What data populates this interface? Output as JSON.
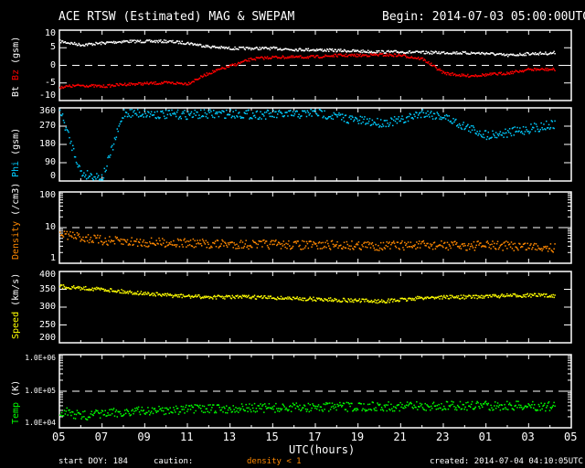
{
  "chart_data": {
    "type": "scatter",
    "title": "ACE RTSW (Estimated) MAG & SWEPAM",
    "begin": "Begin: 2014-07-03 05:00:00UTC",
    "xlabel": "UTC(hours)",
    "x_ticks": [
      "05",
      "07",
      "09",
      "11",
      "13",
      "15",
      "17",
      "19",
      "21",
      "23",
      "01",
      "03",
      "05"
    ],
    "xlim": [
      0,
      24
    ],
    "hours": [
      0,
      1,
      2,
      3,
      4,
      5,
      6,
      7,
      8,
      9,
      10,
      11,
      12,
      13,
      14,
      15,
      16,
      17,
      18,
      19,
      20,
      21,
      22,
      23,
      23.2
    ],
    "panels": [
      {
        "name": "bt-bz",
        "ylabel_parts": [
          {
            "text": "Bt",
            "color": "#ffffff"
          },
          {
            "text": "Bz",
            "color": "#ff0000"
          },
          {
            "text": "(gsm)",
            "color": "#ffffff"
          }
        ],
        "scale": "linear",
        "ylim": [
          -10,
          10
        ],
        "yticks": [
          "-10",
          "-5",
          "0",
          "5",
          "10"
        ],
        "tickvals": [
          -10,
          -5,
          0,
          5,
          10
        ],
        "dashed": 0,
        "series": [
          {
            "name": "Bt",
            "color": "#ffffff",
            "values": [
              7,
              6,
              6.5,
              7,
              7,
              7,
              6.5,
              5.5,
              5,
              5,
              5,
              4.7,
              4.6,
              4.4,
              4.2,
              4,
              4,
              3.8,
              3.8,
              3.7,
              3.6,
              3,
              3.5,
              3.6,
              3.8
            ]
          },
          {
            "name": "Bz",
            "color": "#ff0000",
            "values": [
              -6,
              -5.5,
              -5.8,
              -5.2,
              -5,
              -4.8,
              -5,
              -2,
              0,
              2,
              2.5,
              2.5,
              2.6,
              3,
              3,
              3.2,
              3,
              2,
              -2,
              -2.8,
              -2.5,
              -2,
              -1,
              -1,
              -1
            ]
          }
        ]
      },
      {
        "name": "phi",
        "ylabel_parts": [
          {
            "text": "Phi",
            "color": "#00ccff"
          },
          {
            "text": "(gsm)",
            "color": "#ffffff"
          }
        ],
        "scale": "linear",
        "ylim": [
          0,
          360
        ],
        "yticks": [
          "0",
          "90",
          "180",
          "270",
          "360"
        ],
        "tickvals": [
          0,
          90,
          180,
          270,
          360
        ],
        "series": [
          {
            "name": "Phi",
            "color": "#00ccff",
            "values": [
              350,
              40,
              20,
              340,
              335,
              330,
              330,
              332,
              335,
              330,
              330,
              330,
              340,
              320,
              300,
              290,
              300,
              340,
              320,
              270,
              230,
              240,
              260,
              280,
              280
            ]
          }
        ]
      },
      {
        "name": "density",
        "ylabel_parts": [
          {
            "text": "Density",
            "color": "#ff8800"
          },
          {
            "text": "(/cm3)",
            "color": "#ffffff"
          }
        ],
        "scale": "log",
        "ylim": [
          1,
          100
        ],
        "yticks": [
          "1",
          "10",
          "100"
        ],
        "tickvals": [
          1,
          10,
          100
        ],
        "dashed": 10,
        "series": [
          {
            "name": "Density",
            "color": "#ff8800",
            "values": [
              7,
              5.5,
              4.5,
              4.2,
              4,
              4,
              3.8,
              3.6,
              3.6,
              3.5,
              3.5,
              3.4,
              3.3,
              3.4,
              3.3,
              3.2,
              3.3,
              3.3,
              3.3,
              3.2,
              3.3,
              3.2,
              3.1,
              3,
              2.8
            ]
          }
        ]
      },
      {
        "name": "speed",
        "ylabel_parts": [
          {
            "text": "Speed",
            "color": "#ffff00"
          },
          {
            "text": "(km/s)",
            "color": "#ffffff"
          }
        ],
        "scale": "linear",
        "ylim": [
          200,
          400
        ],
        "yticks": [
          "200",
          "250",
          "300",
          "350",
          "400"
        ],
        "tickvals": [
          200,
          250,
          300,
          350,
          400
        ],
        "series": [
          {
            "name": "Speed",
            "color": "#ffff00",
            "values": [
              360,
              355,
              352,
              345,
              340,
              335,
              332,
              330,
              330,
              330,
              328,
              326,
              324,
              322,
              320,
              318,
              322,
              328,
              330,
              330,
              332,
              334,
              335,
              334,
              333
            ]
          }
        ]
      },
      {
        "name": "temp",
        "ylabel_parts": [
          {
            "text": "Temp",
            "color": "#00ff00"
          },
          {
            "text": "(K)",
            "color": "#ffffff"
          }
        ],
        "scale": "log",
        "ylim": [
          10000,
          1000000
        ],
        "yticks": [
          "1.0E+04",
          "1.0E+05",
          "1.0E+06"
        ],
        "tickvals": [
          10000,
          100000,
          1000000
        ],
        "dashed": 100000,
        "series": [
          {
            "name": "Temp",
            "color": "#00ff00",
            "values": [
              30000,
              22000,
              25000,
              28000,
              30000,
              32000,
              33000,
              34000,
              35000,
              36000,
              36000,
              37000,
              38000,
              38000,
              39000,
              40000,
              40000,
              40000,
              41000,
              42000,
              42000,
              42000,
              41000,
              40000,
              40000
            ]
          }
        ]
      }
    ]
  },
  "footer": {
    "start_doy": "start DOY: 184",
    "caution": "caution:",
    "caution_note": "density < 1",
    "created": "created: 2014-07-04 04:10:05UTC"
  }
}
